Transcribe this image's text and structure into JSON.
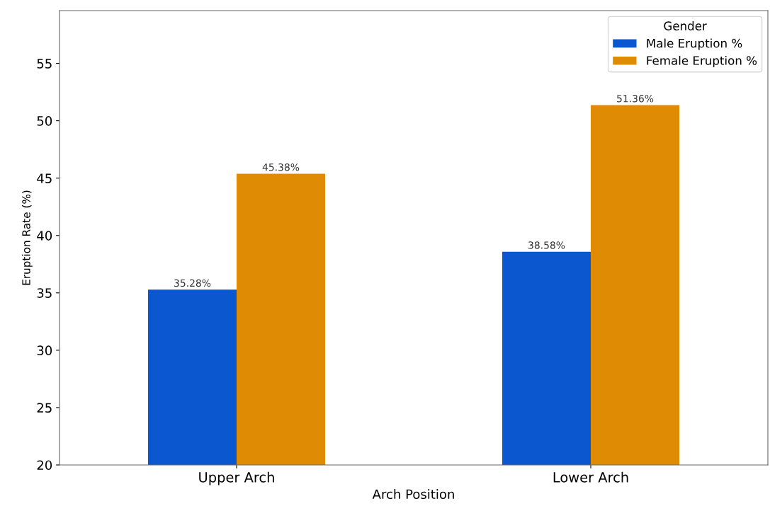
{
  "chart_data": {
    "type": "bar",
    "xlabel": "Arch Position",
    "ylabel": "Eruption Rate (%)",
    "legend_title": "Gender",
    "categories": [
      "Upper Arch",
      "Lower Arch"
    ],
    "series": [
      {
        "name": "Male Eruption %",
        "color": "#0b57d0",
        "values": [
          35.28,
          38.58
        ],
        "value_labels": [
          "35.28%",
          "38.58%"
        ]
      },
      {
        "name": "Female Eruption %",
        "color": "#df8c04",
        "values": [
          45.38,
          51.36
        ],
        "value_labels": [
          "45.38%",
          "51.36%"
        ]
      }
    ],
    "ylim": [
      20,
      59.6
    ],
    "yticks": [
      20,
      25,
      30,
      35,
      40,
      45,
      50,
      55
    ],
    "legend": "top right"
  }
}
